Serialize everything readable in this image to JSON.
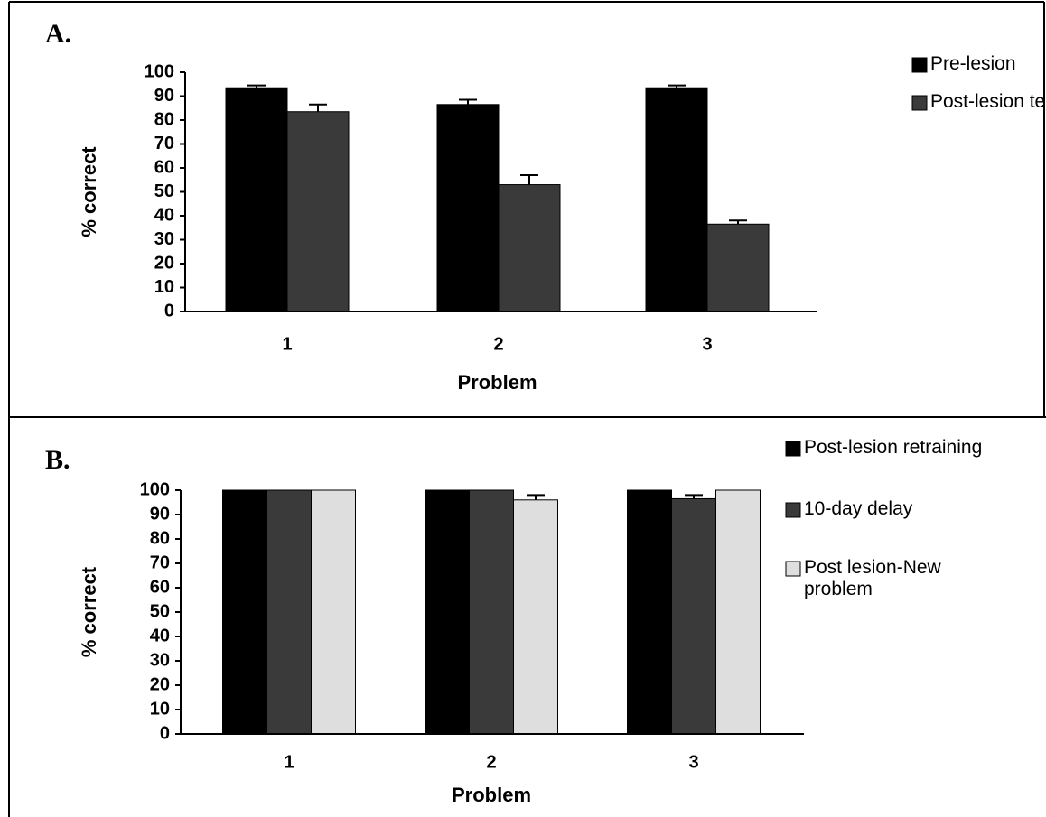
{
  "chart_data": [
    {
      "type": "bar",
      "label": "A.",
      "x_label": "Problem",
      "y_label": "% correct",
      "categories": [
        "1",
        "2",
        "3"
      ],
      "series": [
        {
          "name": "Pre-lesion",
          "color": "#000000",
          "values": [
            93.5,
            86.5,
            93.5
          ],
          "errors": [
            1,
            2,
            1
          ]
        },
        {
          "name": "Post-lesion test",
          "color": "#3a3a3a",
          "values": [
            83.5,
            53,
            36.5
          ],
          "errors": [
            3,
            4,
            1.5
          ]
        }
      ],
      "ylim": [
        0,
        100
      ],
      "yticks": [
        0,
        10,
        20,
        30,
        40,
        50,
        60,
        70,
        80,
        90,
        100
      ]
    },
    {
      "type": "bar",
      "label": "B.",
      "x_label": "Problem",
      "y_label": "% correct",
      "categories": [
        "1",
        "2",
        "3"
      ],
      "series": [
        {
          "name": "Post-lesion retraining",
          "color": "#000000",
          "values": [
            100,
            100,
            100
          ]
        },
        {
          "name": "10-day delay",
          "color": "#3a3a3a",
          "values": [
            100,
            100,
            96.5
          ],
          "errors": [
            null,
            null,
            1.5
          ]
        },
        {
          "name": "Post lesion-New problem",
          "color": "#dedede",
          "values": [
            100,
            96,
            100
          ],
          "errors": [
            null,
            2,
            null
          ]
        }
      ],
      "ylim": [
        0,
        100
      ],
      "yticks": [
        0,
        10,
        20,
        30,
        40,
        50,
        60,
        70,
        80,
        90,
        100
      ]
    }
  ]
}
